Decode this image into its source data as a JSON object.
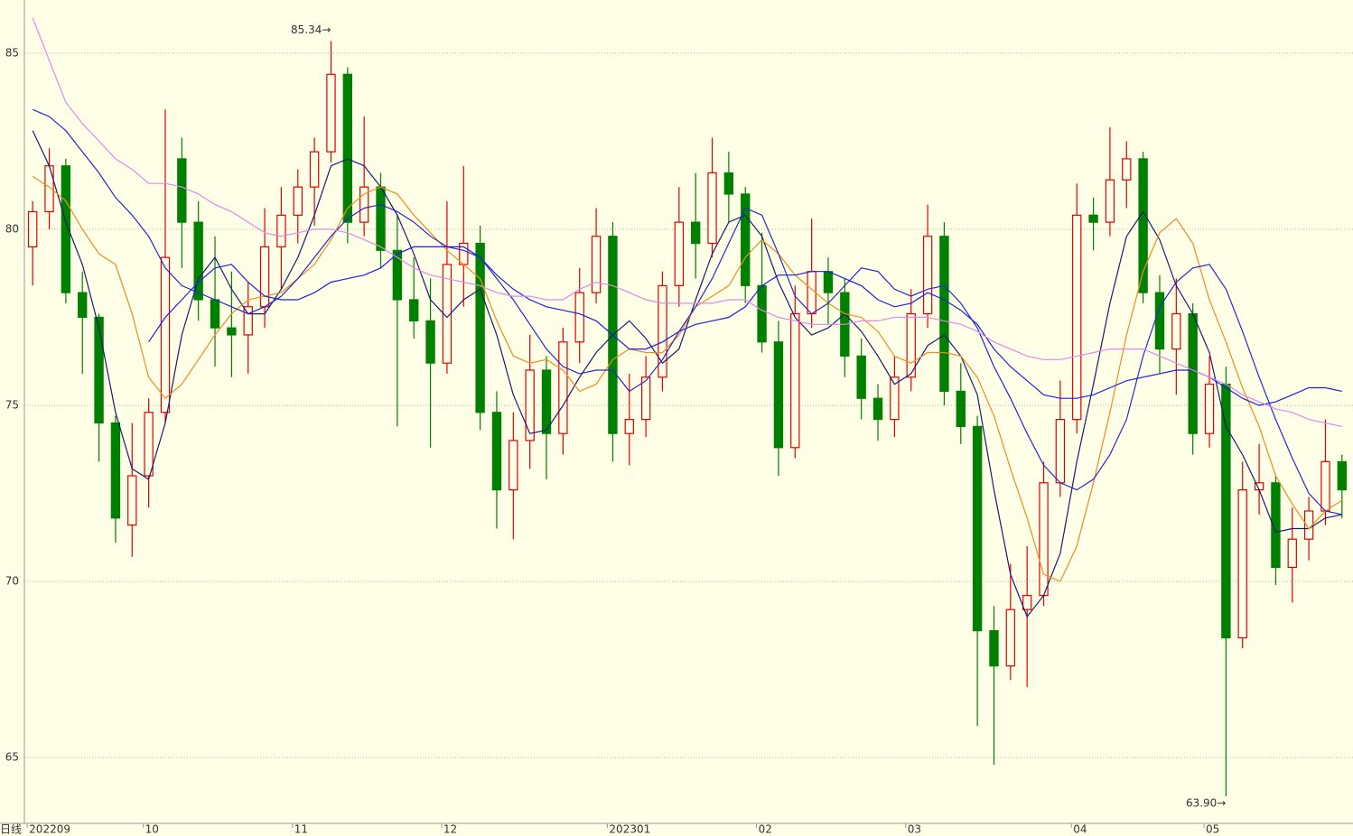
{
  "chart_data": {
    "type": "candlestick",
    "period_label": "日线",
    "categories": [
      "202209",
      null,
      null,
      null,
      null,
      null,
      null,
      "10",
      null,
      null,
      null,
      null,
      null,
      null,
      null,
      null,
      "11",
      null,
      null,
      null,
      null,
      null,
      null,
      null,
      null,
      "12",
      null,
      null,
      null,
      null,
      null,
      null,
      null,
      null,
      null,
      "202301",
      null,
      null,
      null,
      null,
      null,
      null,
      null,
      null,
      "02",
      null,
      null,
      null,
      null,
      null,
      null,
      null,
      null,
      "03",
      null,
      null,
      null,
      null,
      null,
      null,
      null,
      null,
      null,
      "04",
      null,
      null,
      null,
      null,
      null,
      null,
      null,
      "05",
      null,
      null,
      null,
      null,
      null,
      null,
      null,
      null
    ],
    "open": [
      79.5,
      80.5,
      81.8,
      78.2,
      77.5,
      74.5,
      71.6,
      73.0,
      74.8,
      82.0,
      80.2,
      78.0,
      77.2,
      77.0,
      77.8,
      79.5,
      80.4,
      81.2,
      82.2,
      84.4,
      80.2,
      81.2,
      79.4,
      78.0,
      77.4,
      76.2,
      79.0,
      79.6,
      74.8,
      72.6,
      74.0,
      76.0,
      74.2,
      76.8,
      78.2,
      79.8,
      74.2,
      74.6,
      75.8,
      78.4,
      80.2,
      79.6,
      81.6,
      81.0,
      78.4,
      76.8,
      73.8,
      77.6,
      78.8,
      78.2,
      76.4,
      75.2,
      74.6,
      75.8,
      77.6,
      79.8,
      75.4,
      74.4,
      68.6,
      67.6,
      69.2,
      69.6,
      72.8,
      74.6,
      80.4,
      80.2,
      81.4,
      82.0,
      78.2,
      76.6,
      77.6,
      74.2,
      75.6,
      68.4,
      72.6,
      72.8,
      70.4,
      71.2,
      72.0,
      73.4
    ],
    "high": [
      80.8,
      82.3,
      82.0,
      78.8,
      77.6,
      74.7,
      74.5,
      75.2,
      83.4,
      82.6,
      80.8,
      79.8,
      78.8,
      78.5,
      80.6,
      81.2,
      81.7,
      82.6,
      85.34,
      84.6,
      83.2,
      81.6,
      80.4,
      79.2,
      78.6,
      80.8,
      81.8,
      80.1,
      75.4,
      74.8,
      77.0,
      76.4,
      77.2,
      78.9,
      80.6,
      80.2,
      75.9,
      76.4,
      78.8,
      81.2,
      81.6,
      82.6,
      82.2,
      81.2,
      79.9,
      77.4,
      78.4,
      80.3,
      79.2,
      78.6,
      76.9,
      75.6,
      76.4,
      78.3,
      80.7,
      80.2,
      76.2,
      74.7,
      69.3,
      70.5,
      71.0,
      73.4,
      75.7,
      81.3,
      80.9,
      82.9,
      82.5,
      82.2,
      78.7,
      78.6,
      77.9,
      76.4,
      76.1,
      73.4,
      73.9,
      73.0,
      72.1,
      72.4,
      74.6,
      73.6
    ],
    "low": [
      78.4,
      80.0,
      77.9,
      75.9,
      73.4,
      71.1,
      70.7,
      72.1,
      74.5,
      78.9,
      77.4,
      76.1,
      75.8,
      75.9,
      77.2,
      78.3,
      79.6,
      80.1,
      81.9,
      79.6,
      79.8,
      78.9,
      74.4,
      76.9,
      73.8,
      75.9,
      77.8,
      74.3,
      71.5,
      71.2,
      73.2,
      72.9,
      73.6,
      76.2,
      77.9,
      73.4,
      73.3,
      74.1,
      75.4,
      77.8,
      78.6,
      79.2,
      80.2,
      77.9,
      76.5,
      73.0,
      73.5,
      77.2,
      77.3,
      75.8,
      74.6,
      74.0,
      74.1,
      75.4,
      77.2,
      75.0,
      73.9,
      65.9,
      64.8,
      67.2,
      67.0,
      69.3,
      72.4,
      74.2,
      79.4,
      79.8,
      80.6,
      77.9,
      75.9,
      75.3,
      73.6,
      73.8,
      63.9,
      68.1,
      71.9,
      69.9,
      69.4,
      70.6,
      71.6,
      71.8
    ],
    "close": [
      80.5,
      81.8,
      78.2,
      77.5,
      74.5,
      71.8,
      73.0,
      74.8,
      79.2,
      80.2,
      78.0,
      77.2,
      77.0,
      77.8,
      79.5,
      80.4,
      81.2,
      82.2,
      84.4,
      80.2,
      81.2,
      79.4,
      78.0,
      77.4,
      76.2,
      79.0,
      79.6,
      74.8,
      72.6,
      74.0,
      76.0,
      74.2,
      76.8,
      78.2,
      79.8,
      74.2,
      74.6,
      75.8,
      78.4,
      80.2,
      79.6,
      81.6,
      81.0,
      78.4,
      76.8,
      73.8,
      77.6,
      78.8,
      78.2,
      76.4,
      75.2,
      74.6,
      75.8,
      77.6,
      79.8,
      75.4,
      74.4,
      68.6,
      67.6,
      69.2,
      69.6,
      72.8,
      74.6,
      80.4,
      80.2,
      81.4,
      82.0,
      78.2,
      76.6,
      77.6,
      74.2,
      75.6,
      68.4,
      72.6,
      72.8,
      70.4,
      71.2,
      72.0,
      73.4,
      72.6
    ],
    "up_color": "#e00000",
    "down_color": "#008000",
    "lines": [
      {
        "color": "#1a1a70",
        "values": [
          82.8,
          81.8,
          80.2,
          79.0,
          77.2,
          74.8,
          73.2,
          72.9,
          74.5,
          77.0,
          78.6,
          79.2,
          78.3,
          77.6,
          77.6,
          78.3,
          79.2,
          80.4,
          81.8,
          82.0,
          81.8,
          81.2,
          80.4,
          79.3,
          78.0,
          77.5,
          78.0,
          78.3,
          77.0,
          75.3,
          74.2,
          74.3,
          75.0,
          75.8,
          76.5,
          77.0,
          77.4,
          76.9,
          76.2,
          76.6,
          78.0,
          79.3,
          80.2,
          80.4,
          79.8,
          78.5,
          77.5,
          77.0,
          77.2,
          77.6,
          77.1,
          76.4,
          75.6,
          75.9,
          76.7,
          77.0,
          76.4,
          75.3,
          72.6,
          70.2,
          69.0,
          69.6,
          70.8,
          73.4,
          75.6,
          77.9,
          79.8,
          80.5,
          79.7,
          78.4,
          77.6,
          76.5,
          74.4,
          73.6,
          72.6,
          71.4,
          71.5,
          71.5,
          71.8,
          71.9
        ]
      },
      {
        "color": "#f08c1e",
        "values": [
          81.5,
          81.2,
          80.8,
          80.0,
          79.3,
          79.0,
          77.6,
          75.8,
          75.2,
          75.6,
          76.3,
          77.0,
          77.6,
          78.0,
          78.1,
          78.2,
          78.6,
          79.0,
          79.7,
          80.6,
          81.0,
          81.2,
          81.0,
          80.4,
          79.9,
          79.4,
          79.0,
          78.6,
          77.4,
          76.4,
          76.2,
          76.3,
          76.0,
          75.4,
          75.6,
          76.3,
          76.6,
          76.5,
          76.5,
          77.0,
          77.8,
          78.1,
          78.4,
          79.2,
          79.7,
          79.3,
          78.7,
          78.3,
          77.9,
          77.6,
          77.5,
          77.1,
          76.4,
          76.2,
          76.5,
          76.5,
          76.4,
          75.8,
          74.7,
          73.2,
          71.8,
          70.2,
          70.0,
          71.0,
          72.8,
          74.8,
          77.0,
          78.8,
          79.9,
          80.3,
          79.6,
          78.0,
          76.8,
          75.5,
          74.4,
          73.0,
          72.2,
          71.5,
          72.0,
          72.3
        ]
      },
      {
        "color": "#2828c8",
        "values": [
          83.4,
          83.2,
          82.8,
          82.2,
          81.6,
          80.9,
          80.4,
          79.8,
          78.9,
          78.4,
          78.2,
          78.0,
          77.8,
          77.6,
          77.8,
          78.1,
          78.6,
          79.2,
          79.8,
          80.3,
          80.6,
          80.7,
          80.5,
          80.2,
          79.8,
          79.5,
          79.4,
          79.2,
          78.6,
          78.0,
          77.3,
          76.6,
          76.1,
          75.9,
          76.0,
          76.0,
          75.4,
          75.7,
          76.3,
          77.1,
          77.8,
          78.6,
          79.6,
          80.6,
          80.4,
          79.3,
          78.1,
          77.6,
          77.9,
          78.4,
          78.9,
          78.8,
          78.3,
          78.1,
          78.3,
          78.4,
          77.9,
          77.2,
          76.1,
          75.2,
          74.2,
          73.3,
          72.8,
          72.6,
          72.9,
          73.6,
          74.6,
          76.4,
          77.8,
          78.5,
          78.9,
          79.0,
          78.3,
          77.1,
          75.8,
          74.6,
          73.5,
          72.5,
          72.0,
          71.9
        ]
      },
      {
        "color": "#1e1ee0",
        "values": [
          null,
          null,
          null,
          null,
          null,
          null,
          null,
          76.8,
          77.5,
          78.0,
          78.5,
          78.9,
          79.0,
          78.5,
          78.1,
          78.0,
          78.0,
          78.2,
          78.5,
          78.6,
          78.7,
          78.9,
          79.3,
          79.5,
          79.5,
          79.5,
          79.5,
          79.2,
          78.7,
          78.3,
          78.0,
          77.8,
          77.7,
          77.6,
          77.4,
          77.0,
          76.6,
          76.6,
          76.8,
          77.1,
          77.3,
          77.4,
          77.5,
          77.8,
          78.4,
          78.7,
          78.7,
          78.8,
          78.8,
          78.6,
          78.4,
          78.0,
          77.8,
          77.9,
          78.2,
          78.0,
          77.7,
          77.3,
          76.6,
          76.1,
          75.7,
          75.3,
          75.2,
          75.2,
          75.3,
          75.5,
          75.7,
          75.8,
          75.9,
          76.0,
          76.0,
          75.8,
          75.5,
          75.2,
          75.0,
          75.1,
          75.3,
          75.5,
          75.5,
          75.4
        ]
      },
      {
        "color": "#e088e8",
        "values": [
          86.0,
          84.8,
          83.6,
          83.0,
          82.5,
          82.0,
          81.7,
          81.3,
          81.3,
          81.2,
          81.0,
          80.7,
          80.5,
          80.2,
          79.9,
          79.8,
          79.9,
          80.0,
          80.0,
          79.9,
          79.7,
          79.5,
          79.2,
          78.9,
          78.7,
          78.6,
          78.5,
          78.4,
          78.2,
          78.1,
          78.1,
          78.0,
          78.0,
          78.3,
          78.5,
          78.4,
          78.2,
          78.0,
          77.9,
          77.9,
          77.9,
          77.9,
          78.0,
          78.0,
          77.7,
          77.5,
          77.4,
          77.3,
          77.3,
          77.3,
          77.4,
          77.4,
          77.5,
          77.5,
          77.5,
          77.4,
          77.3,
          77.1,
          76.8,
          76.6,
          76.4,
          76.3,
          76.3,
          76.4,
          76.5,
          76.6,
          76.6,
          76.6,
          76.4,
          76.2,
          76.0,
          75.8,
          75.6,
          75.3,
          75.1,
          74.9,
          74.8,
          74.6,
          74.5,
          74.4
        ]
      }
    ],
    "annotations": [
      {
        "text": "85.34→"
      },
      {
        "text": "63.90→"
      }
    ],
    "ylim": [
      63.13,
      86.51
    ],
    "yticks": [
      65,
      70,
      75,
      80,
      85
    ],
    "grid": true
  }
}
